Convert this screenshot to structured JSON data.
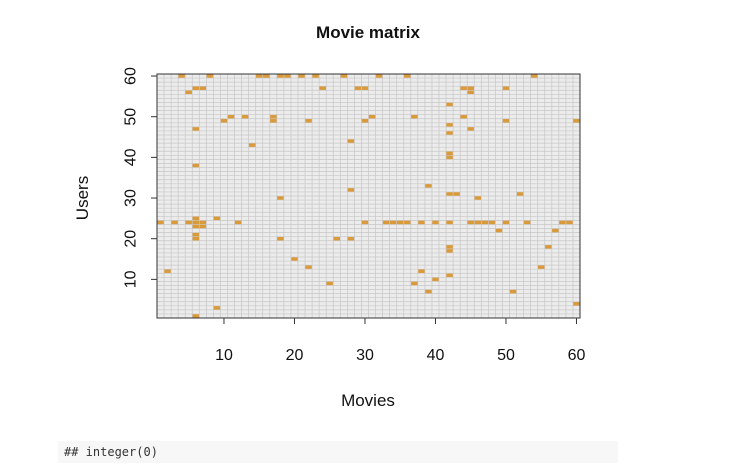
{
  "chart_data": {
    "type": "heatmap",
    "title": "Movie matrix",
    "xlabel": "Movies",
    "ylabel": "Users",
    "xlim": [
      1,
      60
    ],
    "ylim": [
      1,
      60
    ],
    "x_ticks": [
      10,
      20,
      30,
      40,
      50,
      60
    ],
    "y_ticks": [
      10,
      20,
      30,
      40,
      50,
      60
    ],
    "grid": true,
    "colors": {
      "filled": "#d99a3c",
      "empty": "#ececec",
      "grid": "#c7c7c7",
      "axis": "#333333",
      "text": "#111111"
    },
    "filled_cells": [
      [
        4,
        60
      ],
      [
        8,
        60
      ],
      [
        15,
        60
      ],
      [
        16,
        60
      ],
      [
        18,
        60
      ],
      [
        19,
        60
      ],
      [
        21,
        60
      ],
      [
        23,
        60
      ],
      [
        27,
        60
      ],
      [
        32,
        60
      ],
      [
        36,
        60
      ],
      [
        54,
        60
      ],
      [
        5,
        56
      ],
      [
        6,
        57
      ],
      [
        7,
        57
      ],
      [
        24,
        57
      ],
      [
        29,
        57
      ],
      [
        30,
        57
      ],
      [
        44,
        57
      ],
      [
        45,
        57
      ],
      [
        45,
        56
      ],
      [
        50,
        57
      ],
      [
        42,
        53
      ],
      [
        10,
        49
      ],
      [
        11,
        50
      ],
      [
        13,
        50
      ],
      [
        17,
        50
      ],
      [
        17,
        49
      ],
      [
        22,
        49
      ],
      [
        30,
        49
      ],
      [
        31,
        50
      ],
      [
        37,
        50
      ],
      [
        44,
        50
      ],
      [
        50,
        49
      ],
      [
        60,
        49
      ],
      [
        6,
        47
      ],
      [
        42,
        48
      ],
      [
        42,
        46
      ],
      [
        45,
        47
      ],
      [
        14,
        43
      ],
      [
        28,
        44
      ],
      [
        42,
        41
      ],
      [
        42,
        40
      ],
      [
        6,
        38
      ],
      [
        39,
        33
      ],
      [
        28,
        32
      ],
      [
        18,
        30
      ],
      [
        42,
        31
      ],
      [
        43,
        31
      ],
      [
        46,
        30
      ],
      [
        52,
        31
      ],
      [
        9,
        25
      ],
      [
        6,
        25
      ],
      [
        1,
        24
      ],
      [
        3,
        24
      ],
      [
        5,
        24
      ],
      [
        6,
        24
      ],
      [
        7,
        24
      ],
      [
        12,
        24
      ],
      [
        30,
        24
      ],
      [
        33,
        24
      ],
      [
        34,
        24
      ],
      [
        35,
        24
      ],
      [
        36,
        24
      ],
      [
        38,
        24
      ],
      [
        40,
        24
      ],
      [
        42,
        24
      ],
      [
        45,
        24
      ],
      [
        46,
        24
      ],
      [
        47,
        24
      ],
      [
        48,
        24
      ],
      [
        50,
        24
      ],
      [
        53,
        24
      ],
      [
        58,
        24
      ],
      [
        59,
        24
      ],
      [
        6,
        23
      ],
      [
        7,
        23
      ],
      [
        49,
        22
      ],
      [
        57,
        22
      ],
      [
        6,
        21
      ],
      [
        6,
        20
      ],
      [
        18,
        20
      ],
      [
        26,
        20
      ],
      [
        28,
        20
      ],
      [
        42,
        18
      ],
      [
        42,
        17
      ],
      [
        56,
        18
      ],
      [
        20,
        15
      ],
      [
        22,
        13
      ],
      [
        55,
        13
      ],
      [
        2,
        12
      ],
      [
        38,
        12
      ],
      [
        42,
        11
      ],
      [
        40,
        10
      ],
      [
        25,
        9
      ],
      [
        37,
        9
      ],
      [
        39,
        7
      ],
      [
        51,
        7
      ],
      [
        60,
        4
      ],
      [
        9,
        3
      ],
      [
        6,
        1
      ]
    ]
  },
  "console": {
    "output": "## integer(0)"
  }
}
